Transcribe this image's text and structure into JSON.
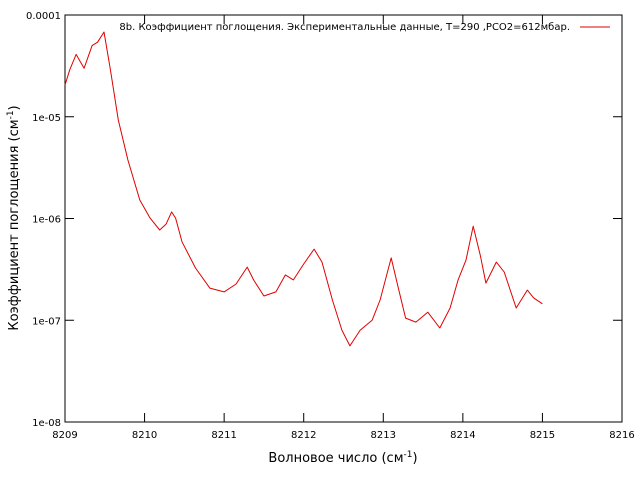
{
  "chart_data": {
    "type": "line",
    "legend_text": "8b. Коэффициент поглощения. Экспериментальные данные, T=290 ,PCO2=612мбар.",
    "xlabel": [
      "Волновое число (см",
      "-1",
      ")"
    ],
    "ylabel": [
      "Коэффициент поглощения (см",
      "-1",
      ")"
    ],
    "log_y": true,
    "legend": "top-right",
    "xlim": [
      8209,
      8216
    ],
    "xticks": [
      8209,
      8210,
      8211,
      8212,
      8213,
      8214,
      8215,
      8216
    ],
    "ylim": [
      1e-08,
      0.0001
    ],
    "yticks": [
      {
        "value": 1e-08,
        "label": "1e-08"
      },
      {
        "value": 1e-07,
        "label": "1e-07"
      },
      {
        "value": 1e-06,
        "label": "1e-06"
      },
      {
        "value": 1e-05,
        "label": "1e-05"
      },
      0.0001
    ],
    "series": [
      {
        "color": "#e00000",
        "x": [
          8209.0,
          8209.06,
          8209.14,
          8209.24,
          8209.34,
          8209.41,
          8209.49,
          8209.57,
          8209.67,
          8209.79,
          8209.94,
          8210.07,
          8210.19,
          8210.27,
          8210.34,
          8210.39,
          8210.47,
          8210.64,
          8210.82,
          8211.0,
          8211.15,
          8211.29,
          8211.37,
          8211.5,
          8211.65,
          8211.77,
          8211.87,
          8212.0,
          8212.13,
          8212.23,
          8212.36,
          8212.48,
          8212.58,
          8212.71,
          8212.86,
          8212.96,
          8213.1,
          8213.18,
          8213.28,
          8213.41,
          8213.56,
          8213.71,
          8213.84,
          8213.94,
          8214.04,
          8214.13,
          8214.22,
          8214.29,
          8214.42,
          8214.52,
          8214.67,
          8214.81,
          8214.89,
          8215.0
        ],
        "values": [
          2.05e-05,
          2.9e-05,
          4.1e-05,
          3e-05,
          5e-05,
          5.4e-05,
          6.8e-05,
          2.9e-05,
          9.3e-06,
          3.76e-06,
          1.52e-06,
          1.01e-06,
          7.7e-07,
          8.8e-07,
          1.16e-06,
          1.01e-06,
          5.9e-07,
          3.26e-07,
          2.07e-07,
          1.9e-07,
          2.27e-07,
          3.33e-07,
          2.49e-07,
          1.73e-07,
          1.9e-07,
          2.79e-07,
          2.49e-07,
          3.57e-07,
          5e-07,
          3.73e-07,
          1.58e-07,
          8e-08,
          5.6e-08,
          8e-08,
          1e-07,
          1.58e-07,
          4.1e-07,
          2.22e-07,
          1.05e-07,
          9.6e-08,
          1.2e-07,
          8.4e-08,
          1.32e-07,
          2.49e-07,
          3.9e-07,
          8.4e-07,
          4.3e-07,
          2.32e-07,
          3.73e-07,
          2.98e-07,
          1.32e-07,
          1.98e-07,
          1.66e-07,
          1.45e-07
        ]
      }
    ]
  }
}
